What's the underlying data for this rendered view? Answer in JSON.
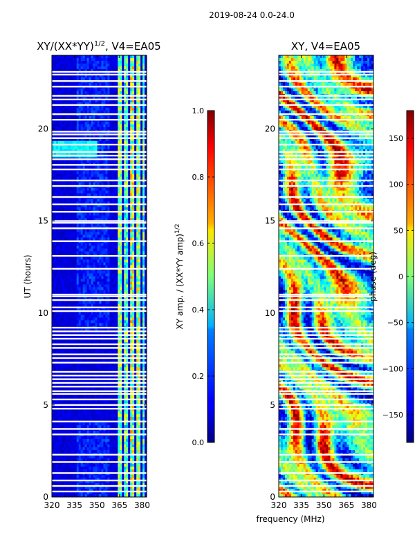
{
  "figure": {
    "suptitle": "2019-08-24 0.0-24.0",
    "shared_xlabel": "frequency (MHz)"
  },
  "chart_data": [
    {
      "type": "heatmap",
      "title": "XY/(XX*YY)",
      "title_exponent": "1/2",
      "title_suffix": ", V4=EA05",
      "xlabel": "",
      "ylabel": "UT (hours)",
      "xlim": [
        320,
        383
      ],
      "ylim": [
        0,
        24
      ],
      "xticks": [
        320,
        335,
        350,
        365,
        380
      ],
      "yticks": [
        0,
        5,
        10,
        15,
        20
      ],
      "colorbar": {
        "label": "XY amp. / (XX*YY amp)",
        "label_exponent": "1/2",
        "vmin": 0.0,
        "vmax": 1.0,
        "ticks": [
          0.0,
          0.2,
          0.4,
          0.6,
          0.8,
          1.0
        ],
        "tick_labels": [
          "0.0",
          "0.2",
          "0.4",
          "0.6",
          "0.8",
          "1.0"
        ],
        "colormap": "jet"
      },
      "flagged_hours": [
        0.3,
        0.6,
        0.9,
        1.3,
        1.9,
        2.3,
        3.4,
        3.7,
        4.1,
        4.8,
        5.0,
        5.3,
        5.6,
        5.75,
        6.0,
        6.2,
        6.4,
        6.6,
        6.8,
        7.3,
        7.55,
        7.75,
        8.1,
        8.3,
        8.6,
        8.8,
        9.0,
        9.2,
        10.1,
        10.3,
        10.7,
        10.9,
        11.0,
        12.4,
        13.1,
        13.9,
        14.6,
        14.9,
        15.0,
        15.5,
        15.9,
        16.3,
        16.9,
        17.2,
        17.8,
        18.05,
        18.35,
        18.55,
        18.75,
        19.15,
        19.5,
        19.7,
        19.85,
        20.5,
        20.8,
        21.3,
        21.6,
        21.8,
        22.3,
        22.6,
        22.95,
        23.1
      ]
    },
    {
      "type": "heatmap",
      "title": "XY, V4=EA05",
      "xlabel": "frequency (MHz)",
      "ylabel": "",
      "xlim": [
        320,
        383
      ],
      "ylim": [
        0,
        24
      ],
      "xticks": [
        320,
        335,
        350,
        365,
        380
      ],
      "yticks": [
        0,
        5,
        10,
        15,
        20
      ],
      "colorbar": {
        "label": "phase (deg)",
        "vmin": -180,
        "vmax": 180,
        "ticks": [
          -150,
          -100,
          -50,
          0,
          50,
          100,
          150
        ],
        "tick_labels": [
          "−150",
          "−100",
          "−50",
          "0",
          "50",
          "100",
          "150"
        ],
        "colormap": "jet"
      },
      "flagged_hours": [
        0.3,
        0.6,
        0.9,
        1.3,
        1.9,
        2.3,
        3.4,
        3.7,
        4.1,
        4.8,
        5.0,
        5.3,
        5.6,
        5.75,
        6.0,
        6.2,
        6.4,
        6.6,
        6.8,
        7.3,
        7.55,
        7.75,
        8.1,
        8.3,
        8.6,
        8.8,
        9.0,
        9.2,
        10.1,
        10.3,
        10.7,
        10.9,
        11.0,
        12.4,
        13.1,
        13.9,
        14.6,
        14.9,
        15.0,
        15.5,
        15.9,
        16.3,
        16.9,
        17.2,
        17.8,
        18.05,
        18.35,
        18.55,
        18.75,
        19.15,
        19.5,
        19.7,
        19.85,
        20.5,
        20.8,
        21.3,
        21.6,
        21.8,
        22.3,
        22.6,
        22.95,
        23.1
      ]
    }
  ]
}
